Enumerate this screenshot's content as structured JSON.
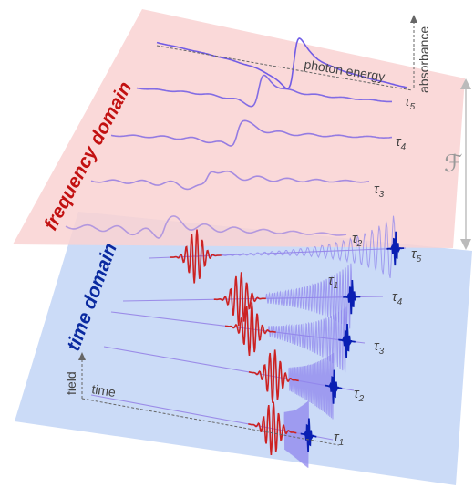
{
  "planes": {
    "frequency": {
      "title": "frequency domain",
      "x_axis_label": "photon energy",
      "y_axis_label": "absorbance",
      "fill_color": "#f9d3d3",
      "title_color": "#c21111"
    },
    "time": {
      "title": "time domain",
      "x_axis_label": "time",
      "y_axis_label": "field",
      "fill_color": "#c8d9f7",
      "title_color": "#0a2aa0"
    }
  },
  "transform_symbol": "ℱ",
  "delays": {
    "frequency": [
      {
        "symbol": "τ",
        "subscript": "5"
      },
      {
        "symbol": "τ",
        "subscript": "4"
      },
      {
        "symbol": "τ",
        "subscript": "3"
      },
      {
        "symbol": "τ",
        "subscript": "2"
      },
      {
        "symbol": "τ",
        "subscript": "1"
      }
    ],
    "time": [
      {
        "symbol": "τ",
        "subscript": "5"
      },
      {
        "symbol": "τ",
        "subscript": "4"
      },
      {
        "symbol": "τ",
        "subscript": "3"
      },
      {
        "symbol": "τ",
        "subscript": "2"
      },
      {
        "symbol": "τ",
        "subscript": "1"
      }
    ]
  },
  "colors": {
    "spectrum_trace": "#6a55e6",
    "probe_pulse": "#0a1fb3",
    "pump_pulse": "#cc2222",
    "polarization_wave": "#8f86ee",
    "axis": "#555555"
  }
}
